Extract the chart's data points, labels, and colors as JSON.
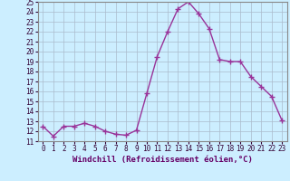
{
  "x": [
    0,
    1,
    2,
    3,
    4,
    5,
    6,
    7,
    8,
    9,
    10,
    11,
    12,
    13,
    14,
    15,
    16,
    17,
    18,
    19,
    20,
    21,
    22,
    23
  ],
  "y": [
    12.5,
    11.5,
    12.5,
    12.5,
    12.8,
    12.5,
    12.0,
    11.7,
    11.6,
    12.1,
    15.8,
    19.5,
    22.0,
    24.3,
    25.0,
    23.8,
    22.3,
    19.2,
    19.0,
    19.0,
    17.5,
    16.5,
    15.5,
    13.1
  ],
  "line_color": "#993399",
  "marker": "+",
  "marker_size": 4,
  "bg_color": "#cceeff",
  "grid_color": "#aabbcc",
  "xlabel": "Windchill (Refroidissement éolien,°C)",
  "xlabel_fontsize": 6.5,
  "ylim": [
    11,
    25
  ],
  "xlim": [
    -0.5,
    23.5
  ],
  "yticks": [
    11,
    12,
    13,
    14,
    15,
    16,
    17,
    18,
    19,
    20,
    21,
    22,
    23,
    24,
    25
  ],
  "xticks": [
    0,
    1,
    2,
    3,
    4,
    5,
    6,
    7,
    8,
    9,
    10,
    11,
    12,
    13,
    14,
    15,
    16,
    17,
    18,
    19,
    20,
    21,
    22,
    23
  ],
  "tick_fontsize": 5.5,
  "linewidth": 1.0,
  "xlabel_color": "#660066",
  "xlabel_bold": true
}
